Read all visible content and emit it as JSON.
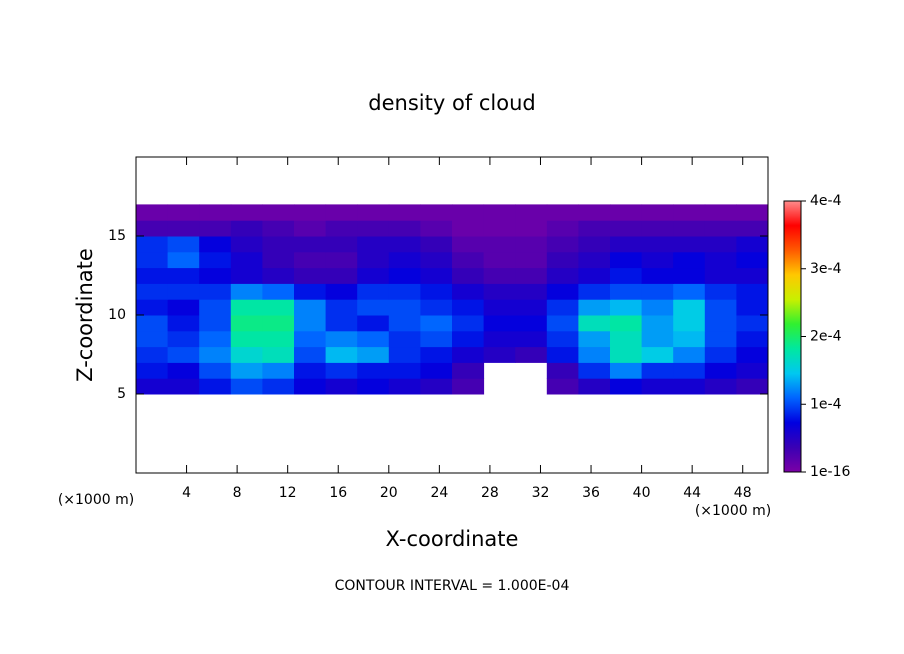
{
  "chart_data": {
    "type": "heatmap",
    "title": "density of cloud",
    "xlabel": "X-coordinate",
    "ylabel": "Z-coordinate",
    "x_unit": "(×1000 m)",
    "y_unit": "(×1000 m)",
    "footer": "CONTOUR INTERVAL = 1.000E-04",
    "xlim": [
      0,
      50
    ],
    "ylim": [
      0,
      20
    ],
    "xticks": [
      4,
      8,
      12,
      16,
      20,
      24,
      28,
      32,
      36,
      40,
      44,
      48
    ],
    "yticks": [
      5,
      10,
      15
    ],
    "xbins": [
      0,
      2.5,
      5,
      7.5,
      10,
      12.5,
      15,
      17.5,
      20,
      22.5,
      25,
      27.5,
      30,
      32.5,
      35,
      37.5,
      40,
      42.5,
      45,
      47.5,
      50
    ],
    "ybins": [
      5,
      6,
      7,
      8,
      9,
      10,
      11,
      12,
      13,
      14,
      15,
      16,
      17
    ],
    "values": [
      [
        6e-05,
        6e-05,
        8e-05,
        0.0001,
        9e-05,
        7e-05,
        6e-05,
        7e-05,
        6e-05,
        5e-05,
        3e-05,
        null,
        null,
        3e-05,
        5e-05,
        7e-05,
        6e-05,
        6e-05,
        5e-05,
        4e-05
      ],
      [
        8e-05,
        7e-05,
        0.0001,
        0.00013,
        0.00012,
        8e-05,
        9e-05,
        8e-05,
        8e-05,
        7e-05,
        4e-05,
        null,
        null,
        4e-05,
        9e-05,
        0.00012,
        9e-05,
        9e-05,
        7e-05,
        6e-05
      ],
      [
        9e-05,
        0.0001,
        0.00012,
        0.00016,
        0.00017,
        0.0001,
        0.00014,
        0.00013,
        9e-05,
        8e-05,
        6e-05,
        5e-05,
        4e-05,
        8e-05,
        0.00012,
        0.00017,
        0.00015,
        0.00012,
        9e-05,
        7e-05
      ],
      [
        0.0001,
        9e-05,
        0.00011,
        0.00018,
        0.00018,
        0.00011,
        0.00012,
        0.00011,
        9e-05,
        0.0001,
        8e-05,
        6e-05,
        6e-05,
        9e-05,
        0.00013,
        0.00017,
        0.00013,
        0.00014,
        0.0001,
        8e-05
      ],
      [
        0.0001,
        8e-05,
        0.0001,
        0.00019,
        0.00019,
        0.00012,
        9e-05,
        8e-05,
        0.0001,
        0.00011,
        9e-05,
        7e-05,
        7e-05,
        0.0001,
        0.00017,
        0.00018,
        0.00013,
        0.00015,
        0.0001,
        9e-05
      ],
      [
        8e-05,
        7e-05,
        0.0001,
        0.00018,
        0.00018,
        0.00012,
        9e-05,
        0.0001,
        0.0001,
        9e-05,
        8e-05,
        6e-05,
        6e-05,
        9e-05,
        0.00013,
        0.00014,
        0.00012,
        0.00015,
        0.0001,
        8e-05
      ],
      [
        9e-05,
        9e-05,
        9e-05,
        0.00012,
        0.00011,
        8e-05,
        7e-05,
        9e-05,
        9e-05,
        8e-05,
        6e-05,
        5e-05,
        5e-05,
        7e-05,
        9e-05,
        0.0001,
        0.0001,
        0.00011,
        9e-05,
        8e-05
      ],
      [
        8e-05,
        8e-05,
        7e-05,
        6e-05,
        5e-05,
        4e-05,
        4e-05,
        6e-05,
        7e-05,
        6e-05,
        4e-05,
        3e-05,
        3e-05,
        5e-05,
        6e-05,
        8e-05,
        7e-05,
        7e-05,
        6e-05,
        6e-05
      ],
      [
        9e-05,
        0.00011,
        8e-05,
        6e-05,
        4e-05,
        3e-05,
        3e-05,
        5e-05,
        6e-05,
        5e-05,
        3e-05,
        2e-05,
        2e-05,
        4e-05,
        5e-05,
        7e-05,
        6e-05,
        7e-05,
        6e-05,
        7e-05
      ],
      [
        9e-05,
        0.0001,
        7e-05,
        5e-05,
        4e-05,
        4e-05,
        4e-05,
        5e-05,
        5e-05,
        4e-05,
        2e-05,
        2e-05,
        2e-05,
        3e-05,
        4e-05,
        5e-05,
        5e-05,
        5e-05,
        5e-05,
        6e-05
      ],
      [
        3e-05,
        3e-05,
        3e-05,
        4e-05,
        3e-05,
        2e-05,
        3e-05,
        3e-05,
        3e-05,
        2e-05,
        1e-05,
        1e-05,
        1e-05,
        2e-05,
        3e-05,
        3e-05,
        3e-05,
        3e-05,
        3e-05,
        3e-05
      ],
      [
        1e-05,
        1e-05,
        1e-05,
        1e-05,
        1e-05,
        1e-05,
        1e-05,
        1e-05,
        1e-05,
        1e-05,
        1e-05,
        1e-05,
        1e-05,
        1e-05,
        1e-05,
        1e-05,
        1e-05,
        1e-05,
        1e-05,
        1e-05
      ]
    ],
    "clim": [
      1e-16,
      0.0004
    ],
    "cticks": [
      {
        "value": 1e-16,
        "label": "1e-16"
      },
      {
        "value": 0.0001,
        "label": "1e-4"
      },
      {
        "value": 0.0002,
        "label": "2e-4"
      },
      {
        "value": 0.0003,
        "label": "3e-4"
      },
      {
        "value": 0.0004,
        "label": "4e-4"
      }
    ],
    "colormap": [
      "#7b00a6",
      "#3a00b4",
      "#0000e0",
      "#0064ff",
      "#00c8f0",
      "#00e8a0",
      "#30f030",
      "#c8f000",
      "#ffc800",
      "#ff5a00",
      "#ff0000",
      "#ff8c8c"
    ]
  }
}
